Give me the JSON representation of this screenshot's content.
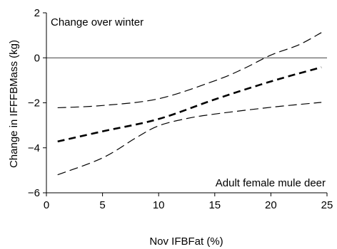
{
  "chart_data": {
    "type": "line",
    "xlabel": "Nov IFBFat (%)",
    "ylabel": "Change in IFFFBMass (kg)",
    "xlim": [
      0,
      25
    ],
    "ylim": [
      -6,
      2
    ],
    "xticks": [
      "0",
      "5",
      "10",
      "15",
      "20",
      "25"
    ],
    "yticks": [
      "−6",
      "−4",
      "−2",
      "0",
      "2"
    ],
    "grid": false,
    "reference_line_y": 0,
    "annotations": {
      "top_left": "Change over winter",
      "bottom_right": "Adult female mule deer"
    },
    "series": [
      {
        "style": "thick-dashed",
        "points": [
          [
            1,
            -3.72
          ],
          [
            5,
            -3.27
          ],
          [
            10,
            -2.72
          ],
          [
            15,
            -1.85
          ],
          [
            20,
            -1.05
          ],
          [
            24.5,
            -0.42
          ]
        ]
      },
      {
        "style": "dashed",
        "points": [
          [
            1,
            -2.22
          ],
          [
            5,
            -2.12
          ],
          [
            10,
            -1.82
          ],
          [
            15,
            -1.02
          ],
          [
            17.5,
            -0.5
          ],
          [
            20,
            0.12
          ],
          [
            22.5,
            0.58
          ],
          [
            24.5,
            1.12
          ]
        ]
      },
      {
        "style": "dashed",
        "points": [
          [
            1,
            -5.2
          ],
          [
            5,
            -4.45
          ],
          [
            8,
            -3.55
          ],
          [
            10,
            -3.02
          ],
          [
            12.5,
            -2.7
          ],
          [
            15,
            -2.5
          ],
          [
            20,
            -2.2
          ],
          [
            24.5,
            -1.98
          ]
        ]
      }
    ]
  }
}
